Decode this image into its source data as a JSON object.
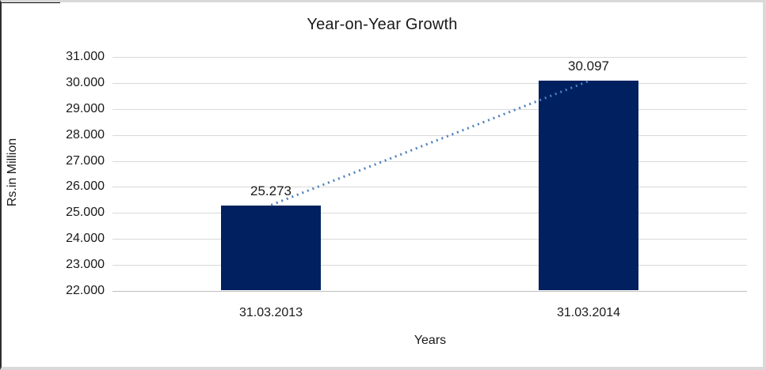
{
  "chart_data": {
    "type": "bar",
    "title": "Year-on-Year Growth",
    "xlabel": "Years",
    "ylabel": "Rs.in Million",
    "categories": [
      "31.03.2013",
      "31.03.2014"
    ],
    "values": [
      25.273,
      30.097
    ],
    "data_labels": [
      "25.273",
      "30.097"
    ],
    "series": [
      {
        "name": "Rs.in Million",
        "values": [
          25.273,
          30.097
        ]
      }
    ],
    "y_ticks": [
      "31.000",
      "30.000",
      "29.000",
      "28.000",
      "27.000",
      "26.000",
      "25.000",
      "24.000",
      "23.000",
      "22.000"
    ],
    "ylim": [
      22.0,
      31.0
    ],
    "grid": true,
    "legend": "none",
    "trendline": {
      "style": "dotted",
      "from": "31.03.2013",
      "to": "31.03.2014"
    },
    "colors": {
      "bar": "#002060",
      "trendline": "#4f81bd",
      "gridline": "#d9d9d9",
      "axis_line": "#bfbfbf",
      "text": "#1a1a1a",
      "background": "#ffffff"
    }
  }
}
